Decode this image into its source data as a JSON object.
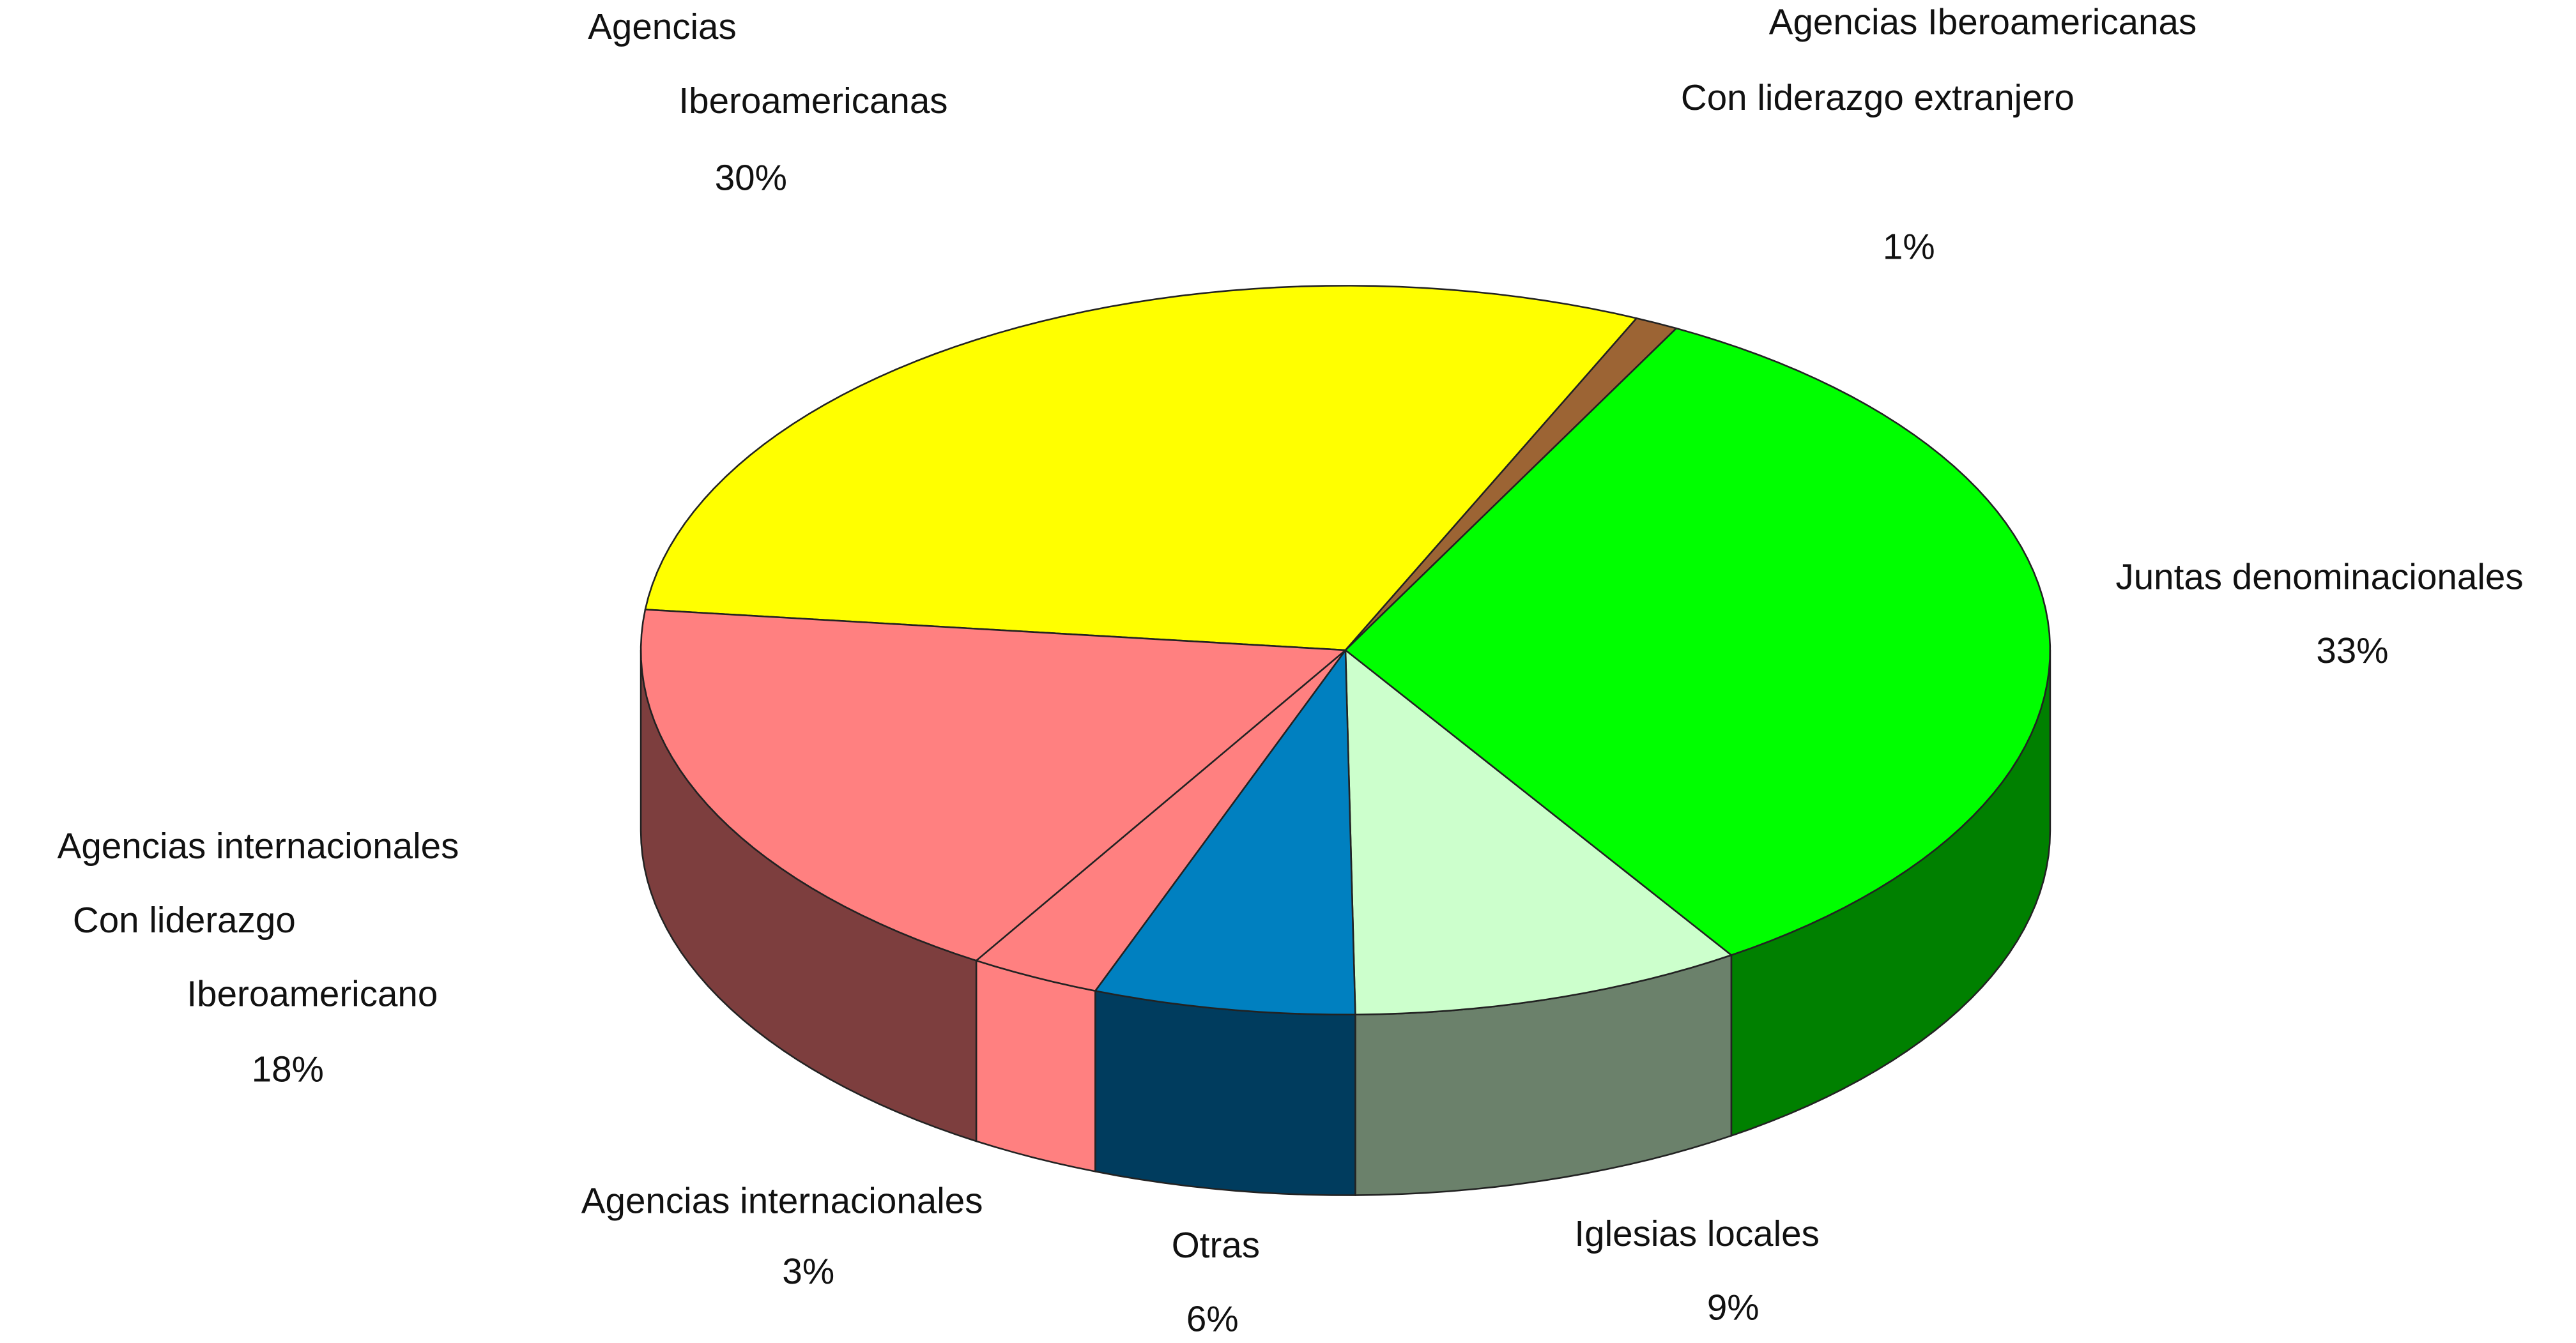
{
  "chart_data": {
    "type": "pie3d",
    "categories": [
      [
        "Agencias",
        "Iberoamericanas"
      ],
      [
        "Agencias Iberoamericanas",
        "Con liderazgo extranjero"
      ],
      [
        "Juntas denominacionales"
      ],
      [
        "Iglesias locales"
      ],
      [
        "Otras"
      ],
      [
        "Agencias internacionales"
      ],
      [
        "Agencias internacionales",
        "Con liderazgo",
        "Iberoamericano"
      ]
    ],
    "values": [
      30,
      1,
      33,
      9,
      6,
      3,
      18
    ],
    "value_labels": [
      "30%",
      "1%",
      "33%",
      "9%",
      "6%",
      "3%",
      "18%"
    ],
    "colors": [
      "#ffff00",
      "#9c6434",
      "#00ff00",
      "#ccffcc",
      "#0080c0",
      "#ff8080",
      "#ff8080"
    ],
    "side_colors": [
      "#a0a000",
      "#5e3c1f",
      "#008000",
      "#6b816b",
      "#003c5e",
      "#ff8080",
      "#7d3e3e"
    ]
  }
}
